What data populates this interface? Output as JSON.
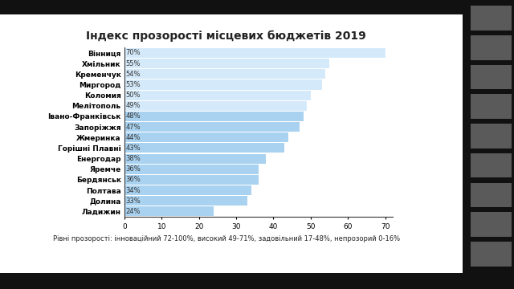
{
  "chart_data": {
    "type": "bar",
    "orientation": "horizontal",
    "title": "Індекс прозорості місцевих бюджетів 2019",
    "categories": [
      "Вінниця",
      "Хмільник",
      "Кременчук",
      "Миргород",
      "Коломия",
      "Мелітополь",
      "Івано-Франківськ",
      "Запоріжжя",
      "Жмеринка",
      "Горішні Плавні",
      "Енергодар",
      "Яремче",
      "Бердянськ",
      "Полтава",
      "Долина",
      "Ладижин"
    ],
    "values": [
      70,
      55,
      54,
      53,
      50,
      49,
      48,
      47,
      44,
      43,
      38,
      36,
      36,
      34,
      33,
      24
    ],
    "value_labels": [
      "70%",
      "55%",
      "54%",
      "53%",
      "50%",
      "49%",
      "48%",
      "47%",
      "44%",
      "43%",
      "38%",
      "36%",
      "36%",
      "34%",
      "33%",
      "24%"
    ],
    "colors": [
      "#d4eafa",
      "#d4eafa",
      "#d4eafa",
      "#d4eafa",
      "#d4eafa",
      "#d4eafa",
      "#a9d2f0",
      "#a9d2f0",
      "#a9d2f0",
      "#a9d2f0",
      "#a9d2f0",
      "#a9d2f0",
      "#a9d2f0",
      "#a9d2f0",
      "#a9d2f0",
      "#a9d2f0"
    ],
    "data_labels": true,
    "xlim": [
      0,
      72
    ],
    "xticks": [
      0,
      10,
      20,
      30,
      40,
      50,
      60,
      70
    ],
    "grid": false,
    "annotations": [
      "Рівні прозорості: інноваційний 72-100%, високий 49-71%, задовільний 17-48%, непрозорий 0-16%"
    ]
  }
}
